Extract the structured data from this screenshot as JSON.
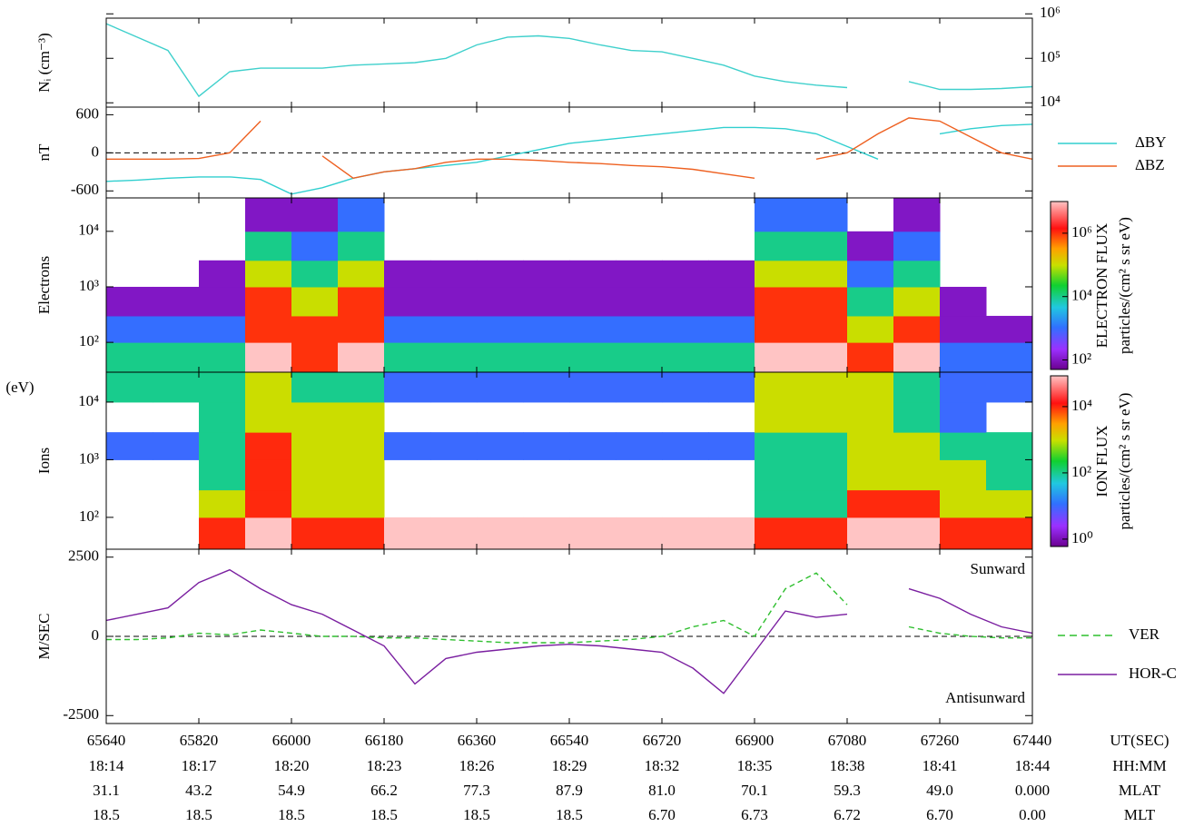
{
  "chart_data": [
    {
      "type": "line",
      "ylabel": "Nᵢ (cm⁻³)",
      "log": true,
      "yaxis_side": "right",
      "ylim": [
        8000,
        800000
      ],
      "yticks": [
        {
          "value": 10000,
          "label": "10⁴"
        },
        {
          "value": 100000,
          "label": "10⁵"
        },
        {
          "value": 1000000,
          "label": "10⁶"
        }
      ],
      "xlim": [
        65640,
        67440
      ],
      "x": [
        65640,
        65700,
        65760,
        65820,
        65880,
        65940,
        66000,
        66060,
        66120,
        66180,
        66240,
        66300,
        66360,
        66420,
        66480,
        66540,
        66600,
        66660,
        66720,
        66780,
        66840,
        66900,
        66960,
        67020,
        67080,
        67140,
        67200,
        67260,
        67320,
        67380,
        67440
      ],
      "series": [
        {
          "color": "#3fd0cc",
          "values": [
            600000,
            300000,
            150000,
            14000,
            50000,
            60000,
            60000,
            60000,
            70000,
            75000,
            80000,
            100000,
            200000,
            300000,
            320000,
            280000,
            200000,
            150000,
            140000,
            100000,
            70000,
            40000,
            30000,
            25000,
            22000,
            null,
            30000,
            20000,
            20000,
            21000,
            23000
          ]
        }
      ]
    },
    {
      "type": "line",
      "ylabel": "nT",
      "ylim": [
        -710,
        720
      ],
      "yticks": [
        -600,
        0,
        600
      ],
      "zero_line": true,
      "xlim": [
        65640,
        67440
      ],
      "x": [
        65640,
        65700,
        65760,
        65820,
        65880,
        65940,
        66000,
        66060,
        66120,
        66180,
        66240,
        66300,
        66360,
        66420,
        66480,
        66540,
        66600,
        66660,
        66720,
        66780,
        66840,
        66900,
        66960,
        67020,
        67080,
        67140,
        67200,
        67260,
        67320,
        67380,
        67440
      ],
      "series": [
        {
          "name": "ΔBY",
          "color": "#30cfcf",
          "values": [
            -450,
            -430,
            -400,
            -380,
            -380,
            -420,
            -650,
            -550,
            -400,
            -300,
            -250,
            -200,
            -150,
            -50,
            50,
            150,
            200,
            250,
            300,
            350,
            400,
            400,
            380,
            300,
            100,
            -100,
            null,
            300,
            380,
            430,
            450
          ]
        },
        {
          "name": "ΔBZ",
          "color": "#ee6020",
          "values": [
            -100,
            -100,
            -100,
            -90,
            0,
            500,
            null,
            -50,
            -400,
            -300,
            -250,
            -150,
            -100,
            -100,
            -120,
            -150,
            -170,
            -200,
            -220,
            -260,
            -330,
            -400,
            null,
            -100,
            0,
            300,
            550,
            500,
            250,
            0,
            -100
          ]
        }
      ]
    },
    {
      "type": "heatmap",
      "ylabel": "Electrons",
      "shared_ylabel": "(eV)",
      "log": true,
      "ylim": [
        29,
        40000
      ],
      "yticks": [
        {
          "value": 100,
          "label": "10²"
        },
        {
          "value": 1000,
          "label": "10³"
        },
        {
          "value": 10000,
          "label": "10⁴"
        }
      ],
      "xlim": [
        65640,
        67440
      ],
      "xbins": [
        65640,
        65730,
        65820,
        65910,
        66000,
        66090,
        66180,
        66270,
        66360,
        66450,
        66540,
        66630,
        66720,
        66810,
        66900,
        66990,
        67080,
        67170,
        67260,
        67350,
        67440
      ],
      "ybins": [
        28,
        100,
        300,
        1000,
        3000,
        10000,
        40000
      ],
      "values": [
        [
          10000,
          1000,
          100,
          null,
          null,
          null
        ],
        [
          10000,
          1000,
          100,
          null,
          null,
          null
        ],
        [
          10000,
          1000,
          100,
          100,
          null,
          null
        ],
        [
          10000000,
          1000000,
          1000000,
          100000,
          10000,
          100
        ],
        [
          1000000,
          1000000,
          100000,
          10000,
          1000,
          100
        ],
        [
          10000000,
          1000000,
          1000000,
          100000,
          10000,
          1000
        ],
        [
          10000,
          1000,
          100,
          100,
          null,
          null
        ],
        [
          10000,
          1000,
          100,
          100,
          null,
          null
        ],
        [
          10000,
          1000,
          100,
          100,
          null,
          null
        ],
        [
          10000,
          1000,
          100,
          100,
          null,
          null
        ],
        [
          10000,
          1000,
          100,
          100,
          null,
          null
        ],
        [
          10000,
          1000,
          100,
          100,
          null,
          null
        ],
        [
          10000,
          1000,
          100,
          100,
          null,
          null
        ],
        [
          10000,
          1000,
          100,
          100,
          null,
          null
        ],
        [
          10000000,
          1000000,
          1000000,
          100000,
          10000,
          1000
        ],
        [
          10000000,
          1000000,
          1000000,
          100000,
          10000,
          1000
        ],
        [
          1000000,
          100000,
          10000,
          1000,
          100,
          null
        ],
        [
          10000000,
          1000000,
          100000,
          10000,
          1000,
          100
        ],
        [
          1000,
          100,
          100,
          null,
          null,
          null
        ],
        [
          1000,
          100,
          null,
          null,
          null,
          null
        ]
      ],
      "colorbar": {
        "label": "ELECTRON FLUX",
        "unit": "particles/(cm² s sr eV)",
        "clim": [
          50,
          10000000
        ],
        "ticks": [
          {
            "value": 100,
            "label": "10²"
          },
          {
            "value": 10000,
            "label": "10⁴"
          },
          {
            "value": 1000000,
            "label": "10⁶"
          }
        ]
      }
    },
    {
      "type": "heatmap",
      "ylabel": "Ions",
      "log": true,
      "ylim": [
        28,
        33000
      ],
      "yticks": [
        {
          "value": 100,
          "label": "10²"
        },
        {
          "value": 1000,
          "label": "10³"
        },
        {
          "value": 10000,
          "label": "10⁴"
        }
      ],
      "xlim": [
        65640,
        67440
      ],
      "xbins": [
        65640,
        65730,
        65820,
        65910,
        66000,
        66090,
        66180,
        66270,
        66360,
        66450,
        66540,
        66630,
        66720,
        66810,
        66900,
        66990,
        67080,
        67170,
        67260,
        67350,
        67440
      ],
      "ybins": [
        28,
        100,
        300,
        1000,
        3000,
        10000,
        40000
      ],
      "values": [
        [
          null,
          null,
          null,
          10,
          null,
          100
        ],
        [
          null,
          null,
          null,
          10,
          null,
          100
        ],
        [
          10000,
          1000,
          100,
          100,
          100,
          100
        ],
        [
          100000,
          10000,
          10000,
          10000,
          1000,
          1000
        ],
        [
          10000,
          1000,
          1000,
          1000,
          1000,
          100
        ],
        [
          10000,
          1000,
          1000,
          1000,
          1000,
          100
        ],
        [
          100000,
          null,
          null,
          10,
          null,
          10
        ],
        [
          100000,
          null,
          null,
          10,
          null,
          10
        ],
        [
          100000,
          null,
          null,
          10,
          null,
          10
        ],
        [
          100000,
          null,
          null,
          10,
          null,
          10
        ],
        [
          100000,
          null,
          null,
          10,
          null,
          10
        ],
        [
          100000,
          null,
          null,
          10,
          null,
          10
        ],
        [
          100000,
          null,
          null,
          10,
          null,
          10
        ],
        [
          100000,
          null,
          null,
          10,
          null,
          10
        ],
        [
          10000,
          100,
          100,
          100,
          1000,
          1000
        ],
        [
          10000,
          100,
          100,
          100,
          1000,
          1000
        ],
        [
          100000,
          10000,
          1000,
          1000,
          1000,
          1000
        ],
        [
          100000,
          10000,
          1000,
          1000,
          100,
          100
        ],
        [
          10000,
          1000,
          1000,
          100,
          10,
          10
        ],
        [
          10000,
          1000,
          100,
          100,
          null,
          10
        ]
      ],
      "colorbar": {
        "label": "ION FLUX",
        "unit": "particles/(cm² s sr eV)",
        "clim": [
          0.6,
          85000
        ],
        "ticks": [
          {
            "value": 1,
            "label": "10⁰"
          },
          {
            "value": 100,
            "label": "10²"
          },
          {
            "value": 10000,
            "label": "10⁴"
          }
        ]
      }
    },
    {
      "type": "line",
      "ylabel": "M/SEC",
      "ylim": [
        -2750,
        2750
      ],
      "yticks": [
        -2500,
        0,
        2500
      ],
      "zero_line": true,
      "annotations": [
        "Sunward",
        "Antisunward"
      ],
      "xlim": [
        65640,
        67440
      ],
      "x": [
        65640,
        65700,
        65760,
        65820,
        65880,
        65940,
        66000,
        66060,
        66120,
        66180,
        66240,
        66300,
        66360,
        66420,
        66480,
        66540,
        66600,
        66660,
        66720,
        66780,
        66840,
        66900,
        66960,
        67020,
        67080,
        67140,
        67200,
        67260,
        67320,
        67380,
        67440
      ],
      "series": [
        {
          "name": "VER",
          "color": "#2fbf2f",
          "dash": true,
          "values": [
            -100,
            -100,
            -50,
            100,
            50,
            200,
            100,
            0,
            0,
            -50,
            -50,
            -100,
            -150,
            -200,
            -200,
            -200,
            -150,
            -100,
            0,
            300,
            500,
            0,
            1500,
            2000,
            1000,
            null,
            300,
            100,
            0,
            -50,
            -50
          ]
        },
        {
          "name": "HOR-C",
          "color": "#7a1fa0",
          "values": [
            500,
            700,
            900,
            1700,
            2100,
            1500,
            1000,
            700,
            200,
            -300,
            -1500,
            -700,
            -500,
            -400,
            -300,
            -250,
            -300,
            -400,
            -500,
            -1000,
            -1800,
            -500,
            800,
            600,
            700,
            null,
            1500,
            1200,
            700,
            300,
            100
          ]
        }
      ],
      "xticks": [
        65640,
        65820,
        66000,
        66180,
        66360,
        66540,
        66720,
        66900,
        67080,
        67260,
        67440
      ],
      "xlabel": "UT(SEC)",
      "extra_rows": [
        {
          "label": "HH:MM",
          "values": [
            "18:14",
            "18:17",
            "18:20",
            "18:23",
            "18:26",
            "18:29",
            "18:32",
            "18:35",
            "18:38",
            "18:41",
            "18:44"
          ]
        },
        {
          "label": "MLAT",
          "values": [
            "31.1",
            "43.2",
            "54.9",
            "66.2",
            "77.3",
            "87.9",
            "81.0",
            "70.1",
            "59.3",
            "49.0",
            "0.000"
          ]
        },
        {
          "label": "MLT",
          "values": [
            "18.5",
            "18.5",
            "18.5",
            "18.5",
            "18.5",
            "18.5",
            "6.70",
            "6.73",
            "6.72",
            "6.70",
            "0.00"
          ]
        }
      ]
    }
  ]
}
